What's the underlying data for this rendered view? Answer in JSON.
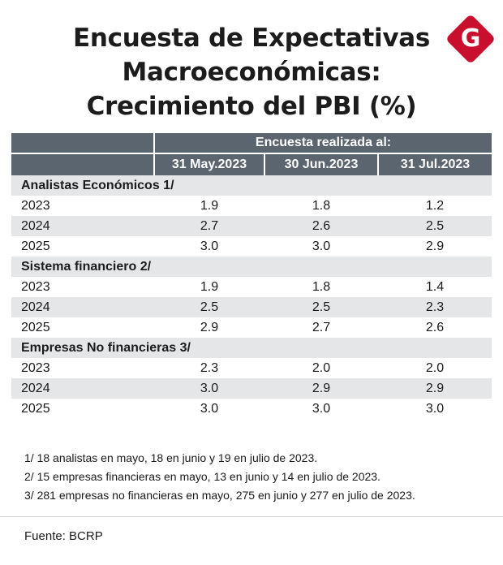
{
  "title": {
    "line1": "Encuesta de Expectativas",
    "line2": "Macroeconómicas:",
    "line3": "Crecimiento del PBI (%)"
  },
  "logo": {
    "letter": "G",
    "color": "#c8102e"
  },
  "table": {
    "survey_label": "Encuesta realizada al:",
    "dates": [
      "31 May.2023",
      "30 Jun.2023",
      "31 Jul.2023"
    ],
    "groups": [
      {
        "name": "Analistas Económicos 1/",
        "rows": [
          {
            "year": "2023",
            "values": [
              "1.9",
              "1.8",
              "1.2"
            ]
          },
          {
            "year": "2024",
            "values": [
              "2.7",
              "2.6",
              "2.5"
            ]
          },
          {
            "year": "2025",
            "values": [
              "3.0",
              "3.0",
              "2.9"
            ]
          }
        ]
      },
      {
        "name": "Sistema financiero 2/",
        "rows": [
          {
            "year": "2023",
            "values": [
              "1.9",
              "1.8",
              "1.4"
            ]
          },
          {
            "year": "2024",
            "values": [
              "2.5",
              "2.5",
              "2.3"
            ]
          },
          {
            "year": "2025",
            "values": [
              "2.9",
              "2.7",
              "2.6"
            ]
          }
        ]
      },
      {
        "name": "Empresas No financieras 3/",
        "rows": [
          {
            "year": "2023",
            "values": [
              "2.3",
              "2.0",
              "2.0"
            ]
          },
          {
            "year": "2024",
            "values": [
              "3.0",
              "2.9",
              "2.9"
            ]
          },
          {
            "year": "2025",
            "values": [
              "3.0",
              "3.0",
              "3.0"
            ]
          }
        ]
      }
    ]
  },
  "notes": [
    "1/ 18 analistas en mayo, 18 en junio y 19 en julio de 2023.",
    "2/ 15 empresas financieras en mayo, 13 en junio y 14 en julio de 2023.",
    "3/ 281 empresas no financieras en mayo, 275 en junio y 277 en julio de 2023."
  ],
  "source": "Fuente: BCRP",
  "colors": {
    "header_bg": "#5a6570",
    "shade_bg": "#e4e6e8"
  }
}
